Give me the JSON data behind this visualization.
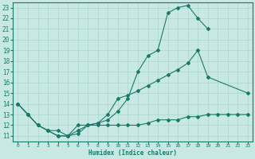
{
  "line1_x": [
    0,
    1,
    2,
    3,
    4,
    5,
    6,
    7,
    8,
    9,
    10,
    11,
    12,
    13,
    14,
    15,
    16,
    17,
    18,
    19
  ],
  "line1_y": [
    14,
    13,
    12,
    11.5,
    11,
    11,
    11.2,
    12,
    12.2,
    12.5,
    13.3,
    14.5,
    17,
    18.5,
    19,
    22.5,
    23,
    23.2,
    22,
    21
  ],
  "line2_x": [
    0,
    1,
    2,
    3,
    4,
    5,
    6,
    7,
    8,
    9,
    10,
    11,
    12,
    13,
    14,
    15,
    16,
    17,
    18,
    19,
    23
  ],
  "line2_y": [
    14,
    13,
    12,
    11.5,
    11,
    11,
    11.5,
    12,
    12.2,
    13,
    14.5,
    14.8,
    15.2,
    15.7,
    16.2,
    16.7,
    17.2,
    17.8,
    19,
    16.5,
    15
  ],
  "line3_x": [
    0,
    1,
    2,
    3,
    4,
    5,
    6,
    7,
    8,
    9,
    10,
    11,
    12,
    13,
    14,
    15,
    16,
    17,
    18,
    19,
    20,
    21,
    22,
    23
  ],
  "line3_y": [
    14,
    13,
    12,
    11.5,
    11.5,
    11,
    12,
    12,
    12,
    12,
    12,
    12,
    12,
    12.2,
    12.5,
    12.5,
    12.5,
    12.8,
    12.8,
    13,
    13,
    13,
    13,
    13
  ],
  "color": "#1a7a6a",
  "bg_color": "#c8e8e4",
  "grid_color": "#aad4cf",
  "xlabel": "Humidex (Indice chaleur)",
  "ylim": [
    10.5,
    23.5
  ],
  "xlim": [
    -0.5,
    23.5
  ],
  "yticks": [
    11,
    12,
    13,
    14,
    15,
    16,
    17,
    18,
    19,
    20,
    21,
    22,
    23
  ],
  "xticks": [
    0,
    1,
    2,
    3,
    4,
    5,
    6,
    7,
    8,
    9,
    10,
    11,
    12,
    13,
    14,
    15,
    16,
    17,
    18,
    19,
    20,
    21,
    22,
    23
  ]
}
